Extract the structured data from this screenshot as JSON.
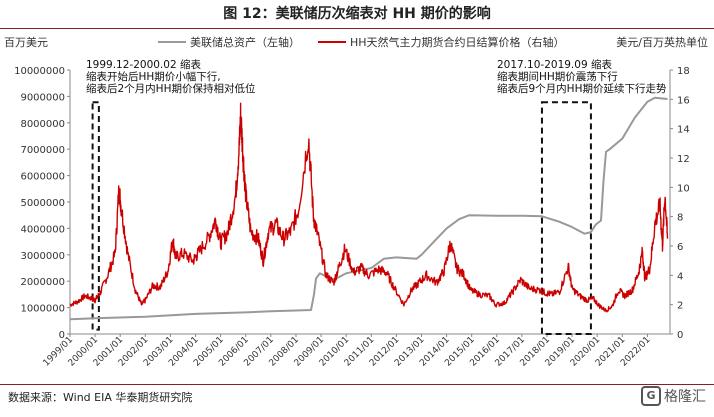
{
  "page": {
    "title": "图 12：美联储历次缩表对 HH 期价的影响",
    "source": "数据来源：Wind EIA 华泰期货研究院",
    "watermark": "格隆汇",
    "watermark_icon": "grid-logo-icon"
  },
  "chart_data": {
    "type": "line",
    "title": "",
    "y_left_label": "百万美元",
    "y_right_label": "美元/百万英热单位",
    "y_left_lim": [
      0,
      10000000
    ],
    "y_left_ticks": [
      "0",
      "1000000",
      "2000000",
      "3000000",
      "4000000",
      "5000000",
      "6000000",
      "7000000",
      "8000000",
      "9000000",
      "10000000"
    ],
    "y_right_lim": [
      0,
      18
    ],
    "y_right_ticks": [
      "0",
      "2",
      "4",
      "6",
      "8",
      "10",
      "12",
      "14",
      "16",
      "18"
    ],
    "x_lim": [
      1999.0,
      2022.9
    ],
    "x_ticks": [
      "1999/01",
      "2000/01",
      "2001/01",
      "2002/01",
      "2003/01",
      "2004/01",
      "2005/01",
      "2006/01",
      "2007/01",
      "2008/01",
      "2009/01",
      "2010/01",
      "2011/01",
      "2012/01",
      "2013/01",
      "2014/01",
      "2015/01",
      "2016/01",
      "2017/01",
      "2018/01",
      "2019/01",
      "2020/01",
      "2021/01",
      "2022/01"
    ],
    "legend_placement": "top",
    "series": [
      {
        "name": "美联储总资产（左轴）",
        "axis": "left",
        "color": "#999999",
        "points": [
          [
            1999.0,
            560000
          ],
          [
            2000.0,
            600000
          ],
          [
            2002.0,
            650000
          ],
          [
            2004.0,
            760000
          ],
          [
            2006.0,
            820000
          ],
          [
            2007.0,
            860000
          ],
          [
            2008.0,
            890000
          ],
          [
            2008.6,
            910000
          ],
          [
            2008.72,
            1500000
          ],
          [
            2008.8,
            2100000
          ],
          [
            2008.95,
            2300000
          ],
          [
            2009.5,
            2050000
          ],
          [
            2010.0,
            2300000
          ],
          [
            2011.0,
            2500000
          ],
          [
            2011.5,
            2850000
          ],
          [
            2012.0,
            2900000
          ],
          [
            2012.8,
            2850000
          ],
          [
            2013.0,
            3000000
          ],
          [
            2013.5,
            3500000
          ],
          [
            2014.0,
            4000000
          ],
          [
            2014.5,
            4350000
          ],
          [
            2014.9,
            4500000
          ],
          [
            2016.0,
            4480000
          ],
          [
            2017.0,
            4480000
          ],
          [
            2017.8,
            4460000
          ],
          [
            2018.5,
            4250000
          ],
          [
            2019.0,
            4050000
          ],
          [
            2019.5,
            3800000
          ],
          [
            2019.75,
            3860000
          ],
          [
            2019.95,
            4150000
          ],
          [
            2020.15,
            4300000
          ],
          [
            2020.25,
            5800000
          ],
          [
            2020.35,
            6900000
          ],
          [
            2020.5,
            7000000
          ],
          [
            2021.0,
            7400000
          ],
          [
            2021.5,
            8200000
          ],
          [
            2022.0,
            8800000
          ],
          [
            2022.3,
            8950000
          ],
          [
            2022.8,
            8900000
          ]
        ]
      },
      {
        "name": "HH天然气主力期货合约日结算价格（右轴）",
        "axis": "right",
        "color": "#cc0000",
        "points": [
          [
            1999.0,
            2.0
          ],
          [
            1999.3,
            2.2
          ],
          [
            1999.6,
            2.6
          ],
          [
            1999.9,
            2.4
          ],
          [
            2000.0,
            2.3
          ],
          [
            2000.2,
            2.8
          ],
          [
            2000.5,
            4.0
          ],
          [
            2000.8,
            5.5
          ],
          [
            2000.95,
            9.9
          ],
          [
            2001.05,
            8.5
          ],
          [
            2001.3,
            5.5
          ],
          [
            2001.6,
            3.0
          ],
          [
            2001.85,
            2.0
          ],
          [
            2002.0,
            2.3
          ],
          [
            2002.3,
            3.3
          ],
          [
            2002.6,
            3.2
          ],
          [
            2002.9,
            4.3
          ],
          [
            2003.1,
            6.5
          ],
          [
            2003.2,
            5.2
          ],
          [
            2003.5,
            5.5
          ],
          [
            2003.9,
            5.0
          ],
          [
            2004.1,
            5.5
          ],
          [
            2004.5,
            6.5
          ],
          [
            2004.8,
            7.8
          ],
          [
            2005.0,
            6.2
          ],
          [
            2005.3,
            7.0
          ],
          [
            2005.6,
            9.5
          ],
          [
            2005.75,
            13.0
          ],
          [
            2005.8,
            15.0
          ],
          [
            2005.9,
            12.0
          ],
          [
            2006.0,
            9.5
          ],
          [
            2006.2,
            7.0
          ],
          [
            2006.5,
            6.5
          ],
          [
            2006.7,
            5.0
          ],
          [
            2006.9,
            7.0
          ],
          [
            2007.2,
            7.5
          ],
          [
            2007.5,
            6.5
          ],
          [
            2007.8,
            7.0
          ],
          [
            2008.1,
            8.5
          ],
          [
            2008.5,
            13.5
          ],
          [
            2008.7,
            8.0
          ],
          [
            2008.9,
            6.5
          ],
          [
            2009.2,
            4.0
          ],
          [
            2009.5,
            3.5
          ],
          [
            2009.7,
            4.5
          ],
          [
            2009.95,
            5.8
          ],
          [
            2010.3,
            4.2
          ],
          [
            2010.6,
            4.5
          ],
          [
            2010.9,
            4.0
          ],
          [
            2011.3,
            4.4
          ],
          [
            2011.6,
            4.2
          ],
          [
            2011.9,
            3.2
          ],
          [
            2012.3,
            2.0
          ],
          [
            2012.6,
            3.0
          ],
          [
            2012.9,
            3.5
          ],
          [
            2013.2,
            4.0
          ],
          [
            2013.6,
            3.5
          ],
          [
            2013.9,
            4.3
          ],
          [
            2014.15,
            6.2
          ],
          [
            2014.4,
            4.5
          ],
          [
            2014.7,
            4.0
          ],
          [
            2014.95,
            3.0
          ],
          [
            2015.3,
            2.7
          ],
          [
            2015.7,
            2.6
          ],
          [
            2015.95,
            2.0
          ],
          [
            2016.3,
            2.1
          ],
          [
            2016.6,
            2.8
          ],
          [
            2016.95,
            3.7
          ],
          [
            2017.3,
            3.1
          ],
          [
            2017.7,
            3.0
          ],
          [
            2017.95,
            2.8
          ],
          [
            2018.2,
            2.7
          ],
          [
            2018.5,
            2.9
          ],
          [
            2018.85,
            4.6
          ],
          [
            2019.0,
            3.1
          ],
          [
            2019.3,
            2.6
          ],
          [
            2019.6,
            2.3
          ],
          [
            2019.85,
            2.4
          ],
          [
            2020.1,
            1.9
          ],
          [
            2020.35,
            1.6
          ],
          [
            2020.6,
            1.9
          ],
          [
            2020.85,
            3.0
          ],
          [
            2021.1,
            2.6
          ],
          [
            2021.4,
            3.0
          ],
          [
            2021.65,
            4.2
          ],
          [
            2021.8,
            5.6
          ],
          [
            2021.9,
            3.8
          ],
          [
            2022.1,
            4.5
          ],
          [
            2022.3,
            7.5
          ],
          [
            2022.5,
            8.8
          ],
          [
            2022.6,
            6.0
          ],
          [
            2022.7,
            9.5
          ],
          [
            2022.8,
            6.5
          ]
        ]
      }
    ],
    "annotations": [
      {
        "lines": [
          "1999.12-2000.02 缩表",
          "缩表开始后HH期价小幅下行,",
          "缩表后2个月内HH期价保持相对低位"
        ],
        "box_x": [
          1999.9,
          2000.15
        ],
        "box_y": [
          0.3,
          15.8
        ]
      },
      {
        "lines": [
          "2017.10-2019.09 缩表",
          "缩表期间HH期价震荡下行",
          "缩表后9个月内HH期价延续下行走势"
        ],
        "box_x": [
          2017.8,
          2019.75
        ],
        "box_y": [
          0.0,
          15.8
        ]
      }
    ]
  }
}
